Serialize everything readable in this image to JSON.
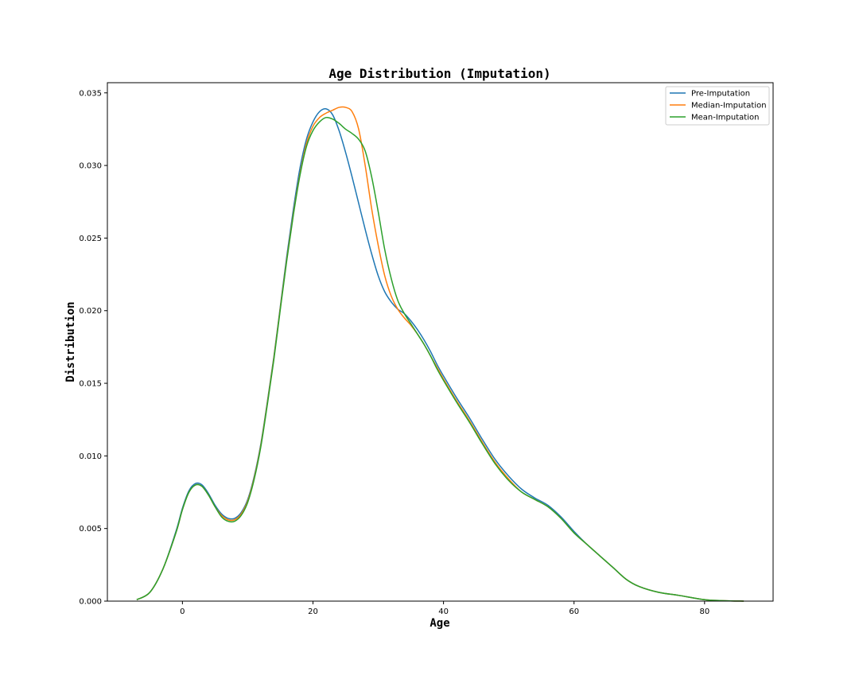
{
  "chart_data": {
    "type": "line",
    "title": "Age Distribution (Imputation)",
    "xlabel": "Age",
    "ylabel": "Distribution",
    "xlim": [
      -11.5,
      90.5
    ],
    "ylim": [
      0,
      0.0357
    ],
    "xticks": [
      0,
      20,
      40,
      60,
      80
    ],
    "xtick_labels": [
      "0",
      "20",
      "40",
      "60",
      "80"
    ],
    "yticks": [
      0,
      0.005,
      0.01,
      0.015,
      0.02,
      0.025,
      0.03,
      0.035
    ],
    "ytick_labels": [
      "0.000",
      "0.005",
      "0.010",
      "0.015",
      "0.020",
      "0.025",
      "0.030",
      "0.035"
    ],
    "grid": false,
    "legend_position": "top-right",
    "series": [
      {
        "name": "Pre-Imputation",
        "color": "#1f77b4",
        "x": [
          -7,
          -5,
          -3,
          -1,
          0,
          1,
          2,
          3,
          4,
          5,
          6,
          7,
          8,
          9,
          10,
          11,
          12,
          13,
          14,
          15,
          16,
          17,
          18,
          19,
          20,
          21,
          22,
          23,
          24,
          25,
          26,
          27,
          28,
          29,
          30,
          31,
          32,
          33,
          34,
          35,
          36,
          37,
          38,
          39,
          40,
          42,
          44,
          46,
          48,
          50,
          52,
          54,
          56,
          58,
          60,
          62,
          64,
          66,
          68,
          70,
          73,
          76,
          80,
          83,
          86
        ],
        "y": [
          0.0001,
          0.0006,
          0.0022,
          0.0048,
          0.0064,
          0.0076,
          0.0081,
          0.008,
          0.0074,
          0.0066,
          0.006,
          0.0057,
          0.0057,
          0.0061,
          0.007,
          0.0086,
          0.0108,
          0.0137,
          0.0168,
          0.0203,
          0.0238,
          0.027,
          0.0298,
          0.0318,
          0.033,
          0.0337,
          0.0339,
          0.0335,
          0.0324,
          0.0309,
          0.0292,
          0.0274,
          0.0256,
          0.0239,
          0.0224,
          0.0213,
          0.0206,
          0.0201,
          0.0198,
          0.0193,
          0.0187,
          0.018,
          0.0172,
          0.0163,
          0.0155,
          0.014,
          0.0126,
          0.0111,
          0.0097,
          0.0086,
          0.0077,
          0.0071,
          0.0066,
          0.0058,
          0.0048,
          0.0039,
          0.0031,
          0.0023,
          0.0015,
          0.001,
          0.0006,
          0.0004,
          0.0001,
          3e-05,
          0.0
        ]
      },
      {
        "name": "Median-Imputation",
        "color": "#ff7f0e",
        "x": [
          -7,
          -5,
          -3,
          -1,
          0,
          1,
          2,
          3,
          4,
          5,
          6,
          7,
          8,
          9,
          10,
          11,
          12,
          13,
          14,
          15,
          16,
          17,
          18,
          19,
          20,
          21,
          22,
          23,
          24,
          25,
          26,
          27,
          28,
          29,
          30,
          31,
          32,
          33,
          34,
          35,
          36,
          37,
          38,
          39,
          40,
          42,
          44,
          46,
          48,
          50,
          52,
          54,
          56,
          58,
          60,
          62,
          64,
          66,
          68,
          70,
          73,
          76,
          80,
          83,
          86
        ],
        "y": [
          0.0001,
          0.0006,
          0.0022,
          0.0047,
          0.0063,
          0.0075,
          0.008,
          0.0079,
          0.0073,
          0.0065,
          0.0059,
          0.0056,
          0.0056,
          0.006,
          0.0069,
          0.0085,
          0.0107,
          0.0136,
          0.0167,
          0.0202,
          0.0236,
          0.0267,
          0.0294,
          0.0315,
          0.0327,
          0.0333,
          0.0336,
          0.0338,
          0.034,
          0.034,
          0.0337,
          0.0325,
          0.03,
          0.027,
          0.0245,
          0.0224,
          0.021,
          0.0201,
          0.0195,
          0.019,
          0.0184,
          0.0177,
          0.0169,
          0.0161,
          0.0153,
          0.0138,
          0.0124,
          0.0109,
          0.0095,
          0.0084,
          0.0075,
          0.007,
          0.0065,
          0.0057,
          0.0047,
          0.0039,
          0.0031,
          0.0023,
          0.0015,
          0.001,
          0.0006,
          0.0004,
          0.0001,
          3e-05,
          0.0
        ]
      },
      {
        "name": "Mean-Imputation",
        "color": "#2ca02c",
        "x": [
          -7,
          -5,
          -3,
          -1,
          0,
          1,
          2,
          3,
          4,
          5,
          6,
          7,
          8,
          9,
          10,
          11,
          12,
          13,
          14,
          15,
          16,
          17,
          18,
          19,
          20,
          21,
          22,
          23,
          24,
          25,
          26,
          27,
          28,
          29,
          30,
          31,
          32,
          33,
          34,
          35,
          36,
          37,
          38,
          39,
          40,
          42,
          44,
          46,
          48,
          50,
          52,
          54,
          56,
          58,
          60,
          62,
          64,
          66,
          68,
          70,
          73,
          76,
          80,
          83,
          86
        ],
        "y": [
          0.0001,
          0.0006,
          0.0022,
          0.0047,
          0.0063,
          0.0075,
          0.008,
          0.0079,
          0.0073,
          0.0065,
          0.0058,
          0.0055,
          0.0055,
          0.0059,
          0.0068,
          0.0084,
          0.0106,
          0.0135,
          0.0166,
          0.0201,
          0.0235,
          0.0266,
          0.0293,
          0.0313,
          0.0324,
          0.033,
          0.0333,
          0.0332,
          0.0329,
          0.0325,
          0.0322,
          0.0318,
          0.031,
          0.0292,
          0.0268,
          0.0242,
          0.0222,
          0.0207,
          0.0198,
          0.0191,
          0.0184,
          0.0177,
          0.0169,
          0.016,
          0.0152,
          0.0137,
          0.0123,
          0.0108,
          0.0094,
          0.0083,
          0.0075,
          0.007,
          0.0065,
          0.0057,
          0.0047,
          0.0039,
          0.0031,
          0.0023,
          0.0015,
          0.001,
          0.0006,
          0.0004,
          0.0001,
          3e-05,
          0.0
        ]
      }
    ]
  }
}
